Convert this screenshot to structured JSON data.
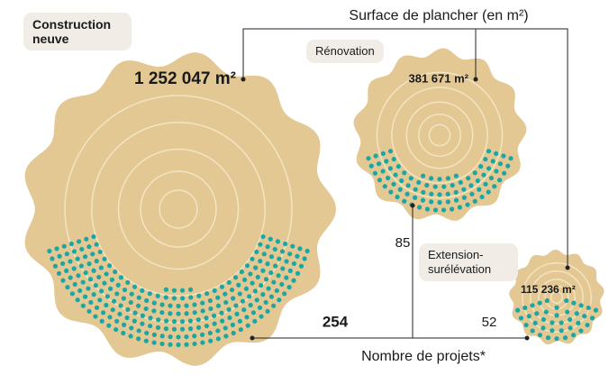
{
  "chart_data": {
    "type": "wood-slice",
    "surface_title": "Surface de plancher (en m²)",
    "projects_title": "Nombre de projets*",
    "categories": [
      "Construction neuve",
      "Rénovation",
      "Extension-surélévation"
    ],
    "values": [
      1252047,
      381671,
      115236
    ],
    "value_labels": [
      "1 252 047 m²",
      "381 671 m²",
      "115 236 m²"
    ],
    "projects": [
      254,
      85,
      52
    ],
    "color": "#e3c894",
    "dot_color": "#1aa7a3"
  }
}
